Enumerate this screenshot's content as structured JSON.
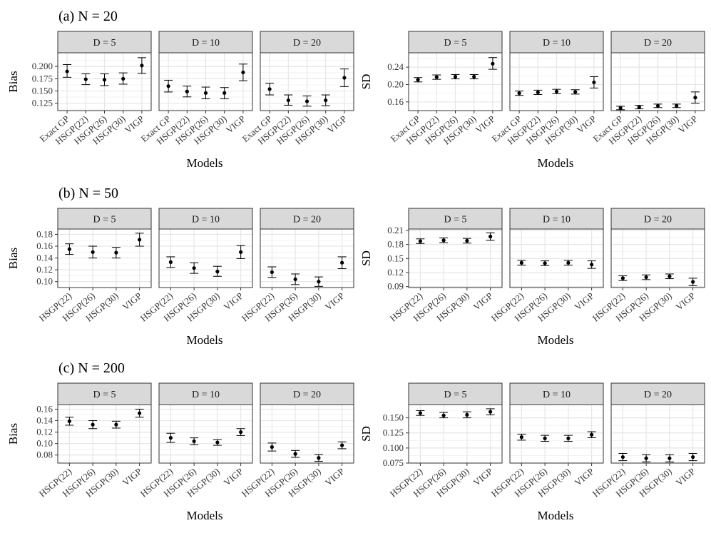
{
  "figure": {
    "rows": [
      {
        "title": "(a) N = 20"
      },
      {
        "title": "(b) N = 50"
      },
      {
        "title": "(c) N = 200"
      }
    ]
  },
  "chart_data": [
    {
      "type": "errorbar",
      "row": 0,
      "col": 0,
      "ylabel": "Bias",
      "xlabel": "Models",
      "yticks": [
        0.125,
        0.15,
        0.175,
        0.2
      ],
      "ytick_labels": [
        "0.125",
        "0.150",
        "0.175",
        "0.200"
      ],
      "ylim": [
        0.11,
        0.228
      ],
      "categories": [
        "Exact GP",
        "HSGP(22)",
        "HSGP(26)",
        "HSGP(30)",
        "VIGP"
      ],
      "panels": [
        {
          "strip": "D = 5",
          "values": [
            0.19,
            0.174,
            0.173,
            0.175,
            0.202
          ],
          "lower": [
            0.178,
            0.163,
            0.161,
            0.164,
            0.186
          ],
          "upper": [
            0.204,
            0.185,
            0.185,
            0.187,
            0.218
          ]
        },
        {
          "strip": "D = 10",
          "values": [
            0.16,
            0.149,
            0.146,
            0.146,
            0.188
          ],
          "lower": [
            0.148,
            0.138,
            0.134,
            0.134,
            0.171
          ],
          "upper": [
            0.172,
            0.16,
            0.158,
            0.157,
            0.205
          ]
        },
        {
          "strip": "D = 20",
          "values": [
            0.154,
            0.131,
            0.129,
            0.131,
            0.177
          ],
          "lower": [
            0.142,
            0.121,
            0.119,
            0.12,
            0.159
          ],
          "upper": [
            0.166,
            0.142,
            0.14,
            0.142,
            0.195
          ]
        }
      ]
    },
    {
      "type": "errorbar",
      "row": 0,
      "col": 1,
      "ylabel": "SD",
      "xlabel": "Models",
      "yticks": [
        0.16,
        0.2,
        0.24
      ],
      "ytick_labels": [
        "0.16",
        "0.20",
        "0.24"
      ],
      "ylim": [
        0.14,
        0.273
      ],
      "categories": [
        "Exact GP",
        "HSGP(22)",
        "HSGP(26)",
        "HSGP(30)",
        "VIGP"
      ],
      "panels": [
        {
          "strip": "D = 5",
          "values": [
            0.211,
            0.217,
            0.218,
            0.218,
            0.248
          ],
          "lower": [
            0.206,
            0.212,
            0.213,
            0.213,
            0.235
          ],
          "upper": [
            0.216,
            0.222,
            0.223,
            0.223,
            0.262
          ]
        },
        {
          "strip": "D = 10",
          "values": [
            0.18,
            0.182,
            0.184,
            0.183,
            0.205
          ],
          "lower": [
            0.175,
            0.177,
            0.179,
            0.178,
            0.192
          ],
          "upper": [
            0.185,
            0.187,
            0.189,
            0.188,
            0.218
          ]
        },
        {
          "strip": "D = 20",
          "values": [
            0.146,
            0.148,
            0.151,
            0.151,
            0.17
          ],
          "lower": [
            0.142,
            0.144,
            0.147,
            0.147,
            0.157
          ],
          "upper": [
            0.15,
            0.152,
            0.155,
            0.155,
            0.183
          ]
        }
      ]
    },
    {
      "type": "errorbar",
      "row": 1,
      "col": 0,
      "ylabel": "Bias",
      "xlabel": "Models",
      "yticks": [
        0.1,
        0.12,
        0.14,
        0.16,
        0.18
      ],
      "ytick_labels": [
        "0.10",
        "0.12",
        "0.14",
        "0.16",
        "0.18"
      ],
      "ylim": [
        0.09,
        0.189
      ],
      "categories": [
        "HSGP(22)",
        "HSGP(26)",
        "HSGP(30)",
        "VIGP"
      ],
      "panels": [
        {
          "strip": "D = 5",
          "values": [
            0.155,
            0.15,
            0.149,
            0.171
          ],
          "lower": [
            0.146,
            0.14,
            0.14,
            0.16
          ],
          "upper": [
            0.164,
            0.16,
            0.158,
            0.182
          ]
        },
        {
          "strip": "D = 10",
          "values": [
            0.133,
            0.123,
            0.117,
            0.15
          ],
          "lower": [
            0.124,
            0.114,
            0.109,
            0.139
          ],
          "upper": [
            0.142,
            0.132,
            0.126,
            0.161
          ]
        },
        {
          "strip": "D = 20",
          "values": [
            0.116,
            0.104,
            0.1,
            0.132
          ],
          "lower": [
            0.107,
            0.095,
            0.092,
            0.122
          ],
          "upper": [
            0.125,
            0.113,
            0.108,
            0.142
          ]
        }
      ]
    },
    {
      "type": "errorbar",
      "row": 1,
      "col": 1,
      "ylabel": "SD",
      "xlabel": "Models",
      "yticks": [
        0.09,
        0.12,
        0.15,
        0.18,
        0.21
      ],
      "ytick_labels": [
        "0.09",
        "0.12",
        "0.15",
        "0.18",
        "0.21"
      ],
      "ylim": [
        0.088,
        0.213
      ],
      "categories": [
        "HSGP(22)",
        "HSGP(26)",
        "HSGP(30)",
        "VIGP"
      ],
      "panels": [
        {
          "strip": "D = 5",
          "values": [
            0.187,
            0.189,
            0.188,
            0.197
          ],
          "lower": [
            0.182,
            0.184,
            0.183,
            0.189
          ],
          "upper": [
            0.192,
            0.194,
            0.193,
            0.205
          ]
        },
        {
          "strip": "D = 10",
          "values": [
            0.141,
            0.14,
            0.141,
            0.137
          ],
          "lower": [
            0.136,
            0.135,
            0.136,
            0.129
          ],
          "upper": [
            0.146,
            0.145,
            0.146,
            0.145
          ]
        },
        {
          "strip": "D = 20",
          "values": [
            0.108,
            0.11,
            0.112,
            0.1
          ],
          "lower": [
            0.103,
            0.105,
            0.107,
            0.092
          ],
          "upper": [
            0.113,
            0.115,
            0.117,
            0.108
          ]
        }
      ]
    },
    {
      "type": "errorbar",
      "row": 2,
      "col": 0,
      "ylabel": "Bias",
      "xlabel": "Models",
      "yticks": [
        0.08,
        0.1,
        0.12,
        0.14,
        0.16
      ],
      "ytick_labels": [
        "0.08",
        "0.10",
        "0.12",
        "0.14",
        "0.16"
      ],
      "ylim": [
        0.066,
        0.168
      ],
      "categories": [
        "HSGP(22)",
        "HSGP(26)",
        "HSGP(30)",
        "VIGP"
      ],
      "panels": [
        {
          "strip": "D = 5",
          "values": [
            0.139,
            0.133,
            0.133,
            0.153
          ],
          "lower": [
            0.132,
            0.126,
            0.127,
            0.146
          ],
          "upper": [
            0.146,
            0.14,
            0.139,
            0.16
          ]
        },
        {
          "strip": "D = 10",
          "values": [
            0.11,
            0.104,
            0.102,
            0.12
          ],
          "lower": [
            0.102,
            0.098,
            0.097,
            0.114
          ],
          "upper": [
            0.118,
            0.11,
            0.107,
            0.126
          ]
        },
        {
          "strip": "D = 20",
          "values": [
            0.094,
            0.082,
            0.075,
            0.097
          ],
          "lower": [
            0.087,
            0.076,
            0.069,
            0.091
          ],
          "upper": [
            0.101,
            0.088,
            0.081,
            0.103
          ]
        }
      ]
    },
    {
      "type": "errorbar",
      "row": 2,
      "col": 1,
      "ylabel": "SD",
      "xlabel": "Models",
      "yticks": [
        0.075,
        0.1,
        0.125,
        0.15
      ],
      "ytick_labels": [
        "0.075",
        "0.100",
        "0.125",
        "0.150"
      ],
      "ylim": [
        0.075,
        0.172
      ],
      "categories": [
        "HSGP(22)",
        "HSGP(26)",
        "HSGP(30)",
        "VIGP"
      ],
      "panels": [
        {
          "strip": "D = 5",
          "values": [
            0.158,
            0.154,
            0.155,
            0.16
          ],
          "lower": [
            0.154,
            0.15,
            0.15,
            0.155
          ],
          "upper": [
            0.162,
            0.159,
            0.16,
            0.165
          ]
        },
        {
          "strip": "D = 10",
          "values": [
            0.118,
            0.116,
            0.116,
            0.122
          ],
          "lower": [
            0.113,
            0.111,
            0.111,
            0.117
          ],
          "upper": [
            0.123,
            0.121,
            0.121,
            0.127
          ]
        },
        {
          "strip": "D = 20",
          "values": [
            0.085,
            0.083,
            0.083,
            0.085
          ],
          "lower": [
            0.079,
            0.077,
            0.077,
            0.079
          ],
          "upper": [
            0.091,
            0.089,
            0.089,
            0.091
          ]
        }
      ]
    }
  ]
}
